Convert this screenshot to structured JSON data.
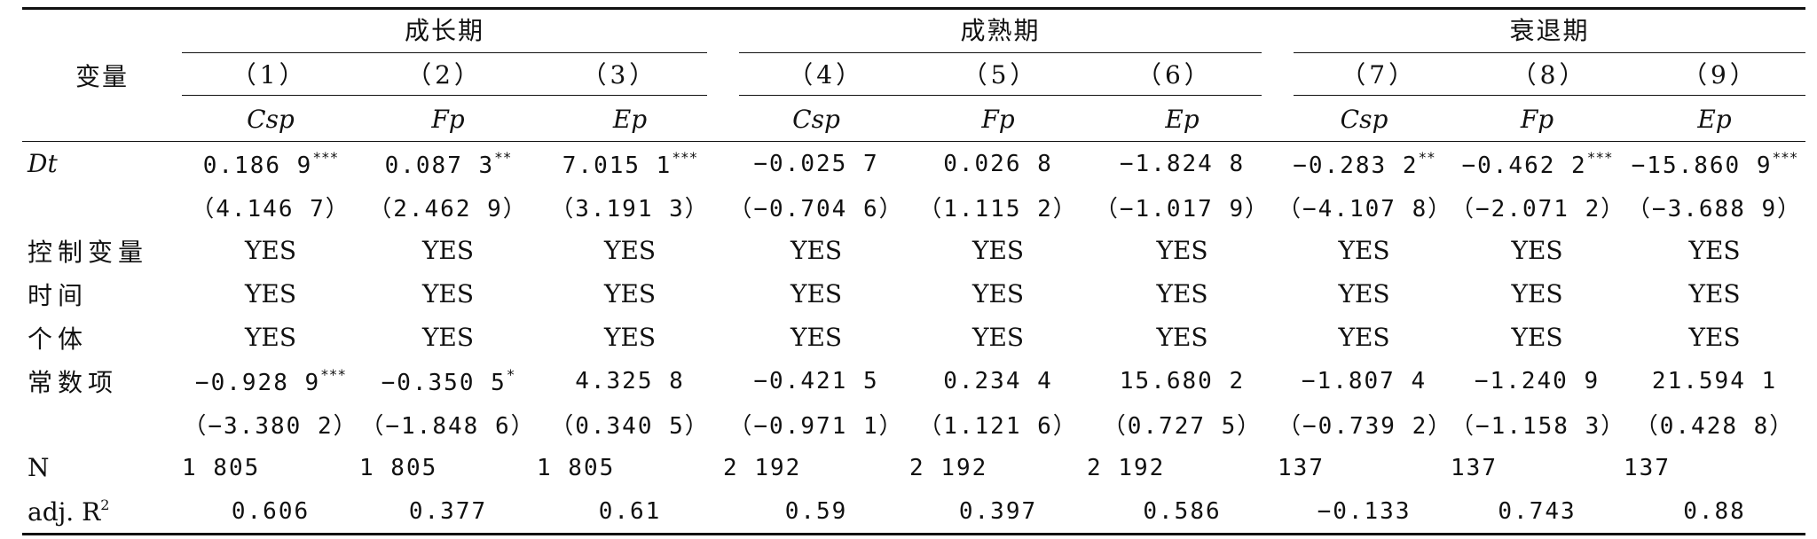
{
  "header": {
    "variable_label": "变量",
    "periods": [
      "成长期",
      "成熟期",
      "衰退期"
    ],
    "column_numbers": [
      "（1）",
      "（2）",
      "（3）",
      "（4）",
      "（5）",
      "（6）",
      "（7）",
      "（8）",
      "（9）"
    ],
    "dependent_vars": [
      "Csp",
      "Fp",
      "Ep",
      "Csp",
      "Fp",
      "Ep",
      "Csp",
      "Fp",
      "Ep"
    ]
  },
  "rows": {
    "dt": {
      "label": "Dt",
      "coef": [
        "0.186 9",
        "0.087 3",
        "7.015 1",
        "−0.025 7",
        "0.026 8",
        "−1.824 8",
        "−0.283 2",
        "−0.462 2",
        "−15.860 9"
      ],
      "stars": [
        "***",
        "**",
        "***",
        "",
        "",
        "",
        "**",
        "***",
        "***"
      ],
      "t": [
        "（4.146 7）",
        "（2.462 9）",
        "（3.191 3）",
        "（−0.704 6）",
        "（1.115 2）",
        "（−1.017 9）",
        "（−4.107 8）",
        "（−2.071 2）",
        "（−3.688 9）"
      ]
    },
    "controls": {
      "label": "控制变量",
      "values": [
        "YES",
        "YES",
        "YES",
        "YES",
        "YES",
        "YES",
        "YES",
        "YES",
        "YES"
      ]
    },
    "time": {
      "label": "时间",
      "values": [
        "YES",
        "YES",
        "YES",
        "YES",
        "YES",
        "YES",
        "YES",
        "YES",
        "YES"
      ]
    },
    "individual": {
      "label": "个体",
      "values": [
        "YES",
        "YES",
        "YES",
        "YES",
        "YES",
        "YES",
        "YES",
        "YES",
        "YES"
      ]
    },
    "constant": {
      "label": "常数项",
      "coef": [
        "−0.928 9",
        "−0.350 5",
        "4.325 8",
        "−0.421 5",
        "0.234 4",
        "15.680 2",
        "−1.807 4",
        "−1.240 9",
        "21.594 1"
      ],
      "stars": [
        "***",
        "*",
        "",
        "",
        "",
        "",
        "",
        "",
        ""
      ],
      "t": [
        "（−3.380 2）",
        "（−1.848 6）",
        "（0.340 5）",
        "（−0.971 1）",
        "（1.121 6）",
        "（0.727 5）",
        "（−0.739 2）",
        "（−1.158 3）",
        "（0.428 8）"
      ]
    },
    "n": {
      "label": "N",
      "values": [
        "1 805",
        "1 805",
        "1 805",
        "2 192",
        "2 192",
        "2 192",
        "137",
        "137",
        "137"
      ]
    },
    "adjr2": {
      "label_prefix": "adj. R",
      "label_sup": "2",
      "values": [
        "0.606",
        "0.377",
        "0.61",
        "0.59",
        "0.397",
        "0.586",
        "−0.133",
        "0.743",
        "0.88"
      ]
    }
  }
}
